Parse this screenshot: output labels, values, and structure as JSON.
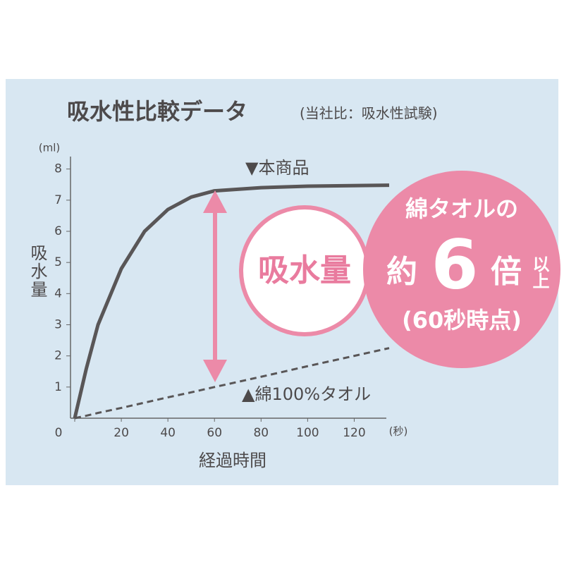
{
  "chart_data": {
    "type": "line",
    "title": "吸水性比較データ",
    "subtitle": "(当社比：吸水性試験)",
    "y_unit": "(ml)",
    "y_label": "吸水量",
    "x_unit": "(秒)",
    "x_label": "経過時間",
    "x": [
      0,
      5,
      10,
      20,
      30,
      40,
      50,
      60,
      80,
      100,
      135
    ],
    "series": [
      {
        "name": "▼本商品",
        "color": "#595657",
        "dashed": false,
        "values": [
          0,
          1.6,
          3.0,
          4.8,
          6.0,
          6.7,
          7.1,
          7.3,
          7.4,
          7.45,
          7.48
        ]
      },
      {
        "name": "▲綿100%タオル",
        "color": "#595657",
        "dashed": true,
        "values": [
          0,
          0.08,
          0.17,
          0.33,
          0.5,
          0.67,
          0.83,
          1.0,
          1.33,
          1.67,
          2.25
        ]
      }
    ],
    "xlim": [
      0,
      135
    ],
    "ylim": [
      0,
      8.4
    ],
    "xticks": [
      0,
      20,
      40,
      60,
      80,
      100,
      120
    ],
    "yticks": [
      1,
      2,
      3,
      4,
      5,
      6,
      7,
      8
    ],
    "annotations": {
      "amount": "吸水量",
      "cotton": "綿タオルの",
      "about": "約",
      "times_num": "6",
      "times": "倍",
      "or_more": "以上",
      "at_time": "(60秒時点)"
    }
  }
}
